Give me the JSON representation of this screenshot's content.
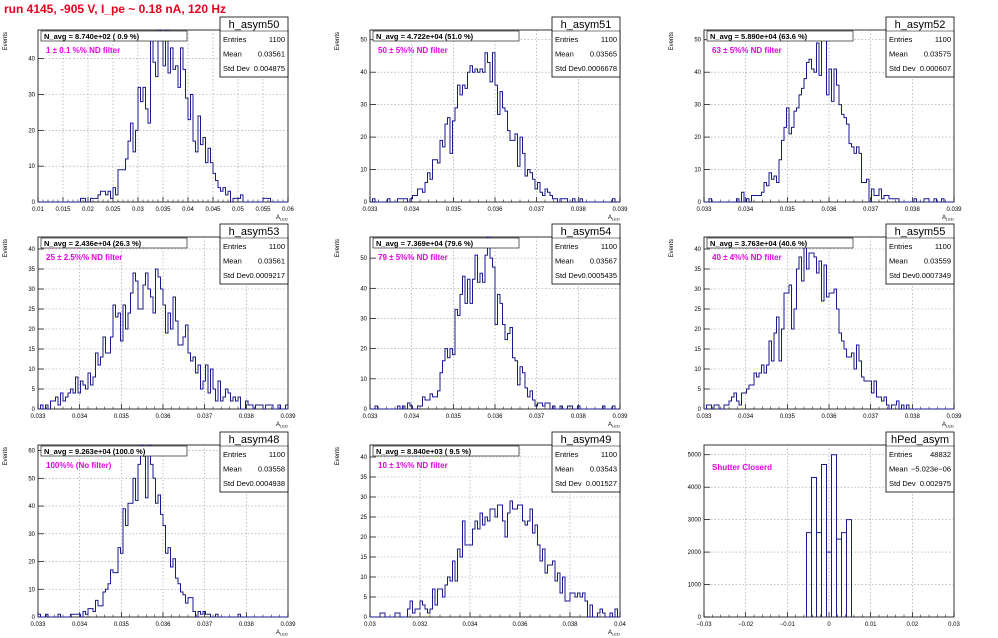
{
  "title": "run 4145,  -905 V, I_pe ~ 0.18 nA, 120 Hz",
  "colors": {
    "line": "#1a1a8f",
    "annotation": "#e600e6",
    "title": "#e8001c",
    "grid": "#9a9a9a"
  },
  "chart_data": [
    {
      "type": "histogram",
      "name": "h_asym50",
      "xlabel": "A_LED",
      "ylabel": "Events",
      "xlim": [
        0.01,
        0.06
      ],
      "ylim": [
        0,
        48
      ],
      "xticks": [
        "0.01",
        "0.015",
        "0.02",
        "0.025",
        "0.03",
        "0.035",
        "0.04",
        "0.045",
        "0.05",
        "0.055",
        "0.06"
      ],
      "yticks": [
        0,
        10,
        20,
        30,
        40
      ],
      "stats": {
        "entries": "1100",
        "mean": "0.03561",
        "std_dev": "0.004875"
      },
      "n_avg_text": "N_avg = 8.740e+02 ( 0.9 %)",
      "filter_text": "1 ± 0.1 %% ND filter",
      "dist": {
        "mean": 0.03561,
        "std": 0.004875,
        "entries": 1100,
        "bins": 100
      },
      "grid": true
    },
    {
      "type": "histogram",
      "name": "h_asym51",
      "xlabel": "A_LED",
      "ylabel": "Events",
      "xlim": [
        0.033,
        0.039
      ],
      "ylim": [
        0,
        53
      ],
      "xticks": [
        "0.033",
        "0.034",
        "0.035",
        "0.036",
        "0.037",
        "0.038",
        "0.039"
      ],
      "yticks": [
        0,
        10,
        20,
        30,
        40,
        50
      ],
      "stats": {
        "entries": "1100",
        "mean": "0.03565",
        "std_dev": "0.0006678"
      },
      "n_avg_text": "N_avg = 4.722e+04 (51.0 %)",
      "filter_text": "50 ± 5%% ND filter",
      "dist": {
        "mean": 0.03565,
        "std": 0.0006678,
        "entries": 1100,
        "bins": 100
      },
      "grid": true
    },
    {
      "type": "histogram",
      "name": "h_asym52",
      "xlabel": "A_LED",
      "ylabel": "Events",
      "xlim": [
        0.033,
        0.039
      ],
      "ylim": [
        0,
        53
      ],
      "xticks": [
        "0.033",
        "0.034",
        "0.035",
        "0.036",
        "0.037",
        "0.038",
        "0.039"
      ],
      "yticks": [
        0,
        10,
        20,
        30,
        40,
        50
      ],
      "stats": {
        "entries": "1100",
        "mean": "0.03575",
        "std_dev": "0.000607"
      },
      "n_avg_text": "N_avg = 5.890e+04 (63.6 %)",
      "filter_text": "63 ± 5%% ND filter",
      "dist": {
        "mean": 0.03575,
        "std": 0.000607,
        "entries": 1100,
        "bins": 100
      },
      "grid": true
    },
    {
      "type": "histogram",
      "name": "h_asym53",
      "xlabel": "A_LED",
      "ylabel": "Events",
      "xlim": [
        0.033,
        0.039
      ],
      "ylim": [
        0,
        43
      ],
      "xticks": [
        "0.033",
        "0.034",
        "0.035",
        "0.036",
        "0.037",
        "0.038",
        "0.039"
      ],
      "yticks": [
        0,
        5,
        10,
        15,
        20,
        25,
        30,
        35,
        40
      ],
      "stats": {
        "entries": "1100",
        "mean": "0.03561",
        "std_dev": "0.0009217"
      },
      "n_avg_text": "N_avg = 2.436e+04 (26.3 %)",
      "filter_text": "25 ± 2.5%% ND filter",
      "dist": {
        "mean": 0.03561,
        "std": 0.0009217,
        "entries": 1100,
        "bins": 100
      },
      "grid": true
    },
    {
      "type": "histogram",
      "name": "h_asym54",
      "xlabel": "A_LED",
      "ylabel": "Events",
      "xlim": [
        0.033,
        0.039
      ],
      "ylim": [
        0,
        57
      ],
      "xticks": [
        "0.033",
        "0.034",
        "0.035",
        "0.036",
        "0.037",
        "0.038",
        "0.039"
      ],
      "yticks": [
        0,
        10,
        20,
        30,
        40,
        50
      ],
      "stats": {
        "entries": "1100",
        "mean": "0.03567",
        "std_dev": "0.0005435"
      },
      "n_avg_text": "N_avg = 7.369e+04 (79.6 %)",
      "filter_text": "79 ± 5%% ND filter",
      "dist": {
        "mean": 0.03567,
        "std": 0.0005435,
        "entries": 1100,
        "bins": 100
      },
      "grid": true
    },
    {
      "type": "histogram",
      "name": "h_asym55",
      "xlabel": "A_LED",
      "ylabel": "Events",
      "xlim": [
        0.033,
        0.039
      ],
      "ylim": [
        0,
        43
      ],
      "xticks": [
        "0.033",
        "0.034",
        "0.035",
        "0.036",
        "0.037",
        "0.038",
        "0.039"
      ],
      "yticks": [
        0,
        5,
        10,
        15,
        20,
        25,
        30,
        35,
        40
      ],
      "stats": {
        "entries": "1100",
        "mean": "0.03559",
        "std_dev": "0.0007349"
      },
      "n_avg_text": "N_avg = 3.763e+04 (40.6 %)",
      "filter_text": "40 ± 4%% ND filter",
      "dist": {
        "mean": 0.03559,
        "std": 0.0007349,
        "entries": 1100,
        "bins": 100
      },
      "grid": true
    },
    {
      "type": "histogram",
      "name": "h_asym48",
      "xlabel": "A_LED",
      "ylabel": "Events",
      "xlim": [
        0.033,
        0.039
      ],
      "ylim": [
        0,
        62
      ],
      "xticks": [
        "0.033",
        "0.034",
        "0.035",
        "0.036",
        "0.037",
        "0.038",
        "0.039"
      ],
      "yticks": [
        0,
        10,
        20,
        30,
        40,
        50,
        60
      ],
      "stats": {
        "entries": "1100",
        "mean": "0.03558",
        "std_dev": "0.0004938"
      },
      "n_avg_text": "N_avg = 9.263e+04 (100.0 %)",
      "filter_text": "100%% (No filter)",
      "dist": {
        "mean": 0.03558,
        "std": 0.0004938,
        "entries": 1100,
        "bins": 100
      },
      "grid": true
    },
    {
      "type": "histogram",
      "name": "h_asym49",
      "xlabel": "A_LED",
      "ylabel": "Events",
      "xlim": [
        0.03,
        0.04
      ],
      "ylim": [
        0,
        43
      ],
      "xticks": [
        "0.03",
        "0.032",
        "0.034",
        "0.036",
        "0.038",
        "0.04"
      ],
      "yticks": [
        0,
        5,
        10,
        15,
        20,
        25,
        30,
        35,
        40
      ],
      "stats": {
        "entries": "1100",
        "mean": "0.03543",
        "std_dev": "0.001527"
      },
      "n_avg_text": "N_avg = 8.840e+03 ( 9.5 %)",
      "filter_text": "10 ± 1%% ND filter",
      "dist": {
        "mean": 0.03543,
        "std": 0.001527,
        "entries": 1100,
        "bins": 100
      },
      "grid": true
    },
    {
      "type": "histogram",
      "name": "hPed_asym",
      "xlabel": "",
      "ylabel": "",
      "xlim": [
        -0.03,
        0.03
      ],
      "ylim": [
        0,
        5300
      ],
      "xticks": [
        "−0.03",
        "−0.02",
        "−0.01",
        "0",
        "0.01",
        "0.02",
        "0.03"
      ],
      "yticks": [
        0,
        1000,
        2000,
        3000,
        4000,
        5000
      ],
      "stats": {
        "entries": "48832",
        "mean": "−5.023e−06",
        "std_dev": "0.002975"
      },
      "filter_text": "Shutter Closerd",
      "bars": [
        {
          "x0": -0.0054,
          "x1": -0.0042,
          "y": 2600
        },
        {
          "x0": -0.0042,
          "x1": -0.003,
          "y": 4300
        },
        {
          "x0": -0.003,
          "x1": -0.0018,
          "y": 2600
        },
        {
          "x0": -0.0018,
          "x1": -0.0006,
          "y": 4700
        },
        {
          "x0": -0.0006,
          "x1": 0.0006,
          "y": 2000
        },
        {
          "x0": 0.0006,
          "x1": 0.0018,
          "y": 5000
        },
        {
          "x0": 0.0018,
          "x1": 0.003,
          "y": 2400
        },
        {
          "x0": 0.003,
          "x1": 0.0042,
          "y": 2600
        },
        {
          "x0": 0.0042,
          "x1": 0.0054,
          "y": 3000
        }
      ],
      "grid": true
    }
  ]
}
